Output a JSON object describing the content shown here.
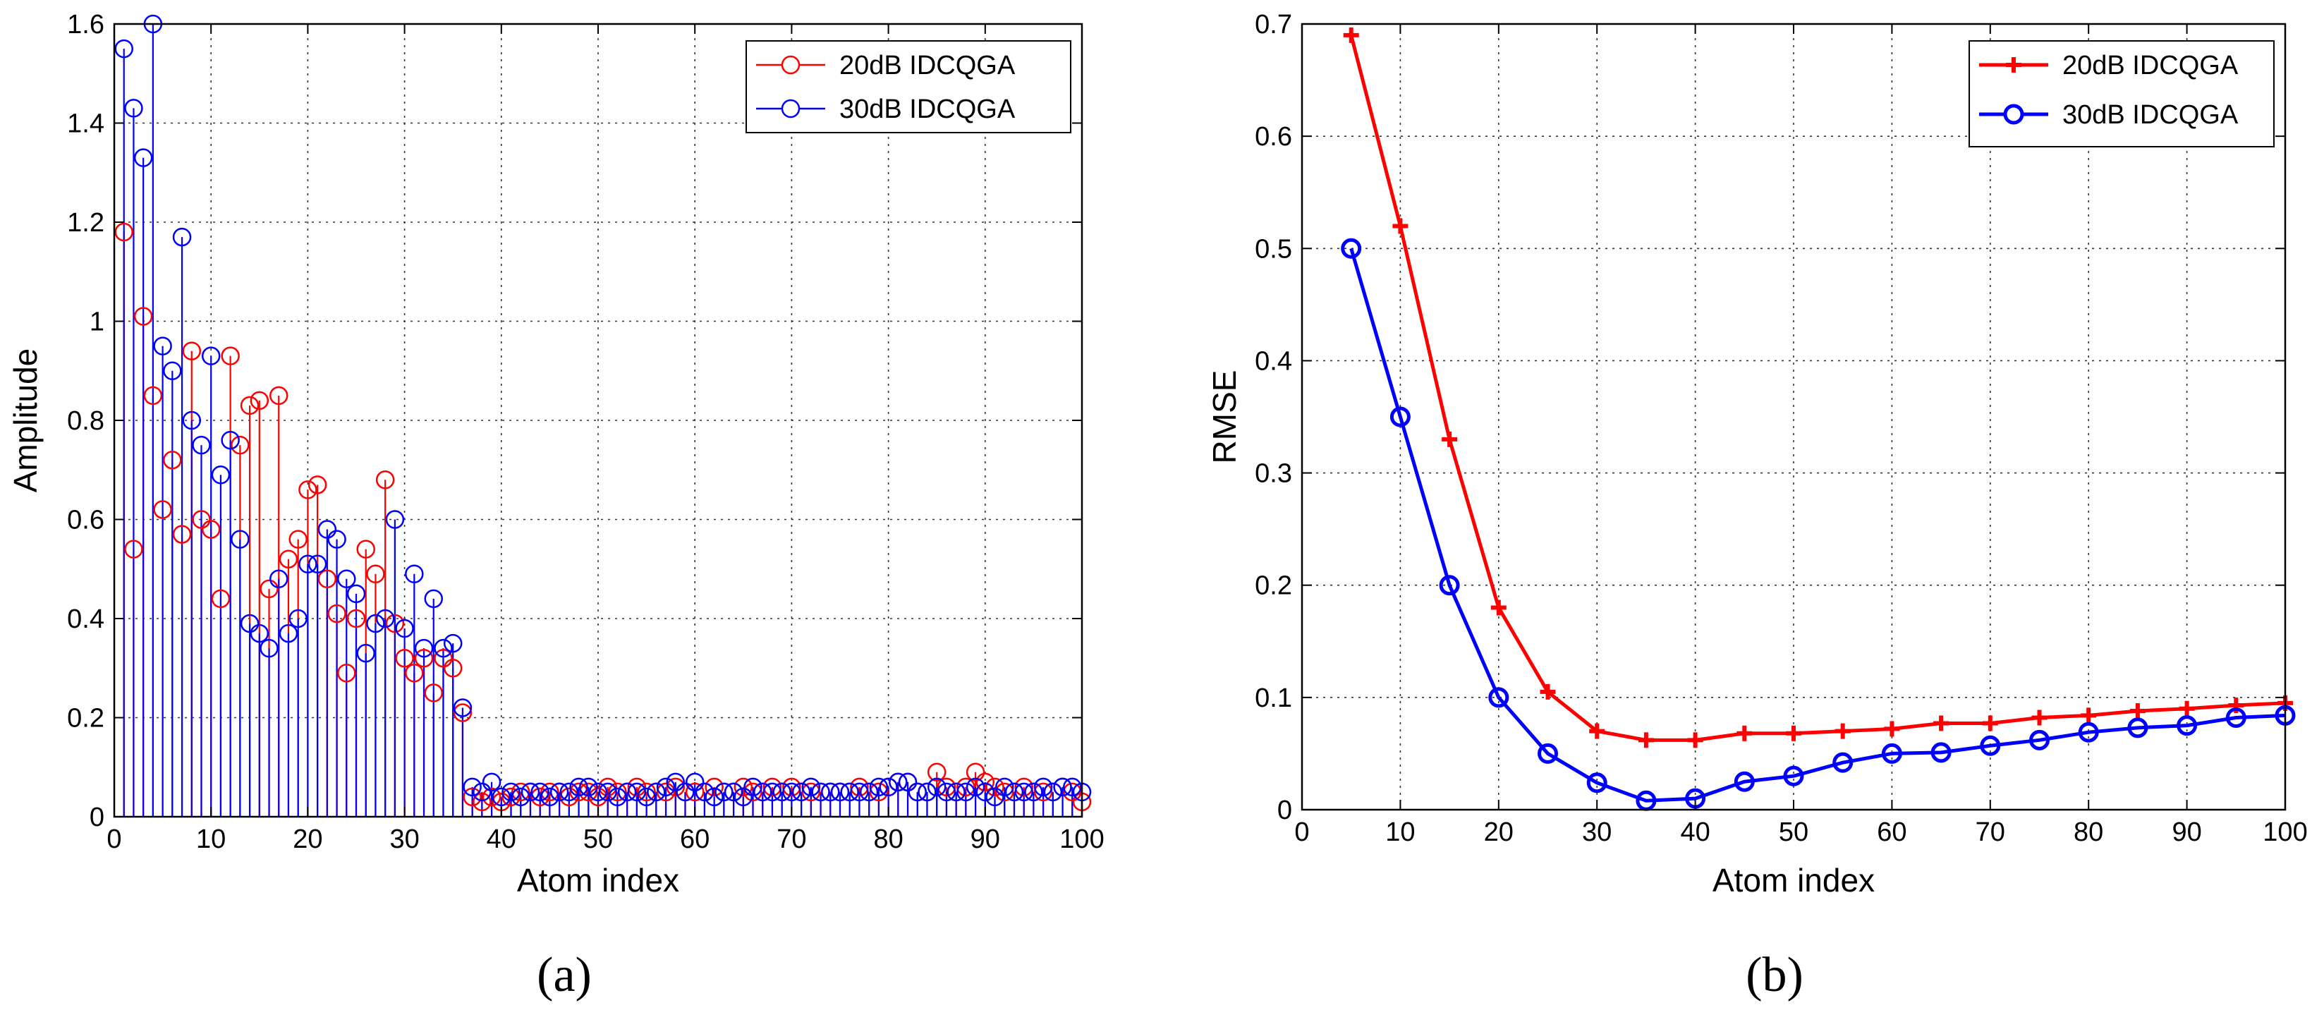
{
  "chart_data": [
    {
      "type": "stem",
      "id": "a",
      "panel_label": "(a)",
      "xlabel": "Atom index",
      "ylabel": "Amplitude",
      "xlim": [
        0,
        100
      ],
      "ylim": [
        0,
        1.6
      ],
      "xticks": [
        "0",
        "10",
        "20",
        "30",
        "40",
        "50",
        "60",
        "70",
        "80",
        "90",
        "100"
      ],
      "yticks": [
        "0",
        "0.2",
        "0.4",
        "0.6",
        "0.8",
        "1",
        "1.2",
        "1.4",
        "1.6"
      ],
      "grid": true,
      "legend_position": "top-right",
      "series": [
        {
          "name": "20dB IDCQGA",
          "color": "#ff0000",
          "marker": "circle",
          "x": [
            1,
            2,
            3,
            4,
            5,
            6,
            7,
            8,
            9,
            10,
            11,
            12,
            13,
            14,
            15,
            16,
            17,
            18,
            19,
            20,
            21,
            22,
            23,
            24,
            25,
            26,
            27,
            28,
            29,
            30,
            31,
            32,
            33,
            34,
            35,
            36,
            37,
            38,
            39,
            40,
            41,
            42,
            43,
            44,
            45,
            46,
            47,
            48,
            49,
            50,
            51,
            52,
            53,
            54,
            55,
            56,
            57,
            58,
            59,
            60,
            61,
            62,
            63,
            64,
            65,
            66,
            67,
            68,
            69,
            70,
            71,
            72,
            73,
            74,
            75,
            76,
            77,
            78,
            79,
            80,
            81,
            82,
            83,
            84,
            85,
            86,
            87,
            88,
            89,
            90,
            91,
            92,
            93,
            94,
            95,
            96,
            97,
            98,
            99,
            100
          ],
          "values": [
            1.18,
            0.54,
            1.01,
            0.85,
            0.62,
            0.72,
            0.57,
            0.94,
            0.6,
            0.58,
            0.44,
            0.93,
            0.75,
            0.83,
            0.84,
            0.46,
            0.85,
            0.52,
            0.56,
            0.66,
            0.67,
            0.48,
            0.41,
            0.29,
            0.4,
            0.54,
            0.49,
            0.68,
            0.39,
            0.32,
            0.29,
            0.32,
            0.25,
            0.32,
            0.3,
            0.21,
            0.04,
            0.03,
            0.04,
            0.03,
            0.04,
            0.05,
            0.05,
            0.04,
            0.05,
            0.05,
            0.04,
            0.05,
            0.05,
            0.04,
            0.06,
            0.05,
            0.05,
            0.06,
            0.05,
            0.05,
            0.05,
            0.06,
            0.05,
            0.05,
            0.05,
            0.06,
            0.05,
            0.05,
            0.06,
            0.05,
            0.05,
            0.06,
            0.05,
            0.06,
            0.05,
            0.05,
            0.05,
            0.05,
            0.05,
            0.05,
            0.06,
            0.05,
            0.05,
            0.06,
            0.07,
            0.07,
            0.05,
            0.05,
            0.09,
            0.06,
            0.05,
            0.06,
            0.09,
            0.07,
            0.06,
            0.05,
            0.05,
            0.06,
            0.05,
            0.05,
            0.05,
            0.06,
            0.05,
            0.03
          ]
        },
        {
          "name": "30dB IDCQGA",
          "color": "#0000ff",
          "marker": "circle",
          "x": [
            1,
            2,
            3,
            4,
            5,
            6,
            7,
            8,
            9,
            10,
            11,
            12,
            13,
            14,
            15,
            16,
            17,
            18,
            19,
            20,
            21,
            22,
            23,
            24,
            25,
            26,
            27,
            28,
            29,
            30,
            31,
            32,
            33,
            34,
            35,
            36,
            37,
            38,
            39,
            40,
            41,
            42,
            43,
            44,
            45,
            46,
            47,
            48,
            49,
            50,
            51,
            52,
            53,
            54,
            55,
            56,
            57,
            58,
            59,
            60,
            61,
            62,
            63,
            64,
            65,
            66,
            67,
            68,
            69,
            70,
            71,
            72,
            73,
            74,
            75,
            76,
            77,
            78,
            79,
            80,
            81,
            82,
            83,
            84,
            85,
            86,
            87,
            88,
            89,
            90,
            91,
            92,
            93,
            94,
            95,
            96,
            97,
            98,
            99,
            100
          ],
          "values": [
            1.55,
            1.43,
            1.33,
            1.6,
            0.95,
            0.9,
            1.17,
            0.8,
            0.75,
            0.93,
            0.69,
            0.76,
            0.56,
            0.39,
            0.37,
            0.34,
            0.48,
            0.37,
            0.4,
            0.51,
            0.51,
            0.58,
            0.56,
            0.48,
            0.45,
            0.33,
            0.39,
            0.4,
            0.6,
            0.38,
            0.49,
            0.34,
            0.44,
            0.34,
            0.35,
            0.22,
            0.06,
            0.05,
            0.07,
            0.04,
            0.05,
            0.04,
            0.05,
            0.05,
            0.04,
            0.05,
            0.05,
            0.06,
            0.06,
            0.05,
            0.05,
            0.04,
            0.05,
            0.05,
            0.04,
            0.05,
            0.06,
            0.07,
            0.05,
            0.07,
            0.05,
            0.04,
            0.05,
            0.05,
            0.04,
            0.06,
            0.05,
            0.05,
            0.05,
            0.05,
            0.05,
            0.06,
            0.05,
            0.05,
            0.05,
            0.05,
            0.05,
            0.05,
            0.06,
            0.06,
            0.07,
            0.07,
            0.05,
            0.05,
            0.06,
            0.05,
            0.05,
            0.05,
            0.06,
            0.05,
            0.04,
            0.06,
            0.05,
            0.05,
            0.05,
            0.06,
            0.05,
            0.06,
            0.06,
            0.05
          ]
        }
      ]
    },
    {
      "type": "line",
      "id": "b",
      "panel_label": "(b)",
      "xlabel": "Atom index",
      "ylabel": "RMSE",
      "xlim": [
        0,
        100
      ],
      "ylim": [
        0,
        0.7
      ],
      "xticks": [
        "0",
        "10",
        "20",
        "30",
        "40",
        "50",
        "60",
        "70",
        "80",
        "90",
        "100"
      ],
      "yticks": [
        "0",
        "0.1",
        "0.2",
        "0.3",
        "0.4",
        "0.5",
        "0.6",
        "0.7"
      ],
      "grid": true,
      "legend_position": "top-right",
      "x": [
        5,
        10,
        15,
        20,
        25,
        30,
        35,
        40,
        45,
        50,
        55,
        60,
        65,
        70,
        75,
        80,
        85,
        90,
        95,
        100
      ],
      "series": [
        {
          "name": "20dB IDCQGA",
          "color": "#ff0000",
          "marker": "plus",
          "values": [
            0.69,
            0.52,
            0.33,
            0.18,
            0.105,
            0.07,
            0.062,
            0.062,
            0.068,
            0.068,
            0.07,
            0.072,
            0.077,
            0.077,
            0.082,
            0.084,
            0.088,
            0.09,
            0.093,
            0.095
          ]
        },
        {
          "name": "30dB IDCQGA",
          "color": "#0000ff",
          "marker": "circle",
          "values": [
            0.5,
            0.35,
            0.2,
            0.1,
            0.05,
            0.024,
            0.008,
            0.01,
            0.025,
            0.03,
            0.042,
            0.05,
            0.051,
            0.057,
            0.062,
            0.069,
            0.073,
            0.075,
            0.082,
            0.084
          ]
        }
      ]
    }
  ]
}
